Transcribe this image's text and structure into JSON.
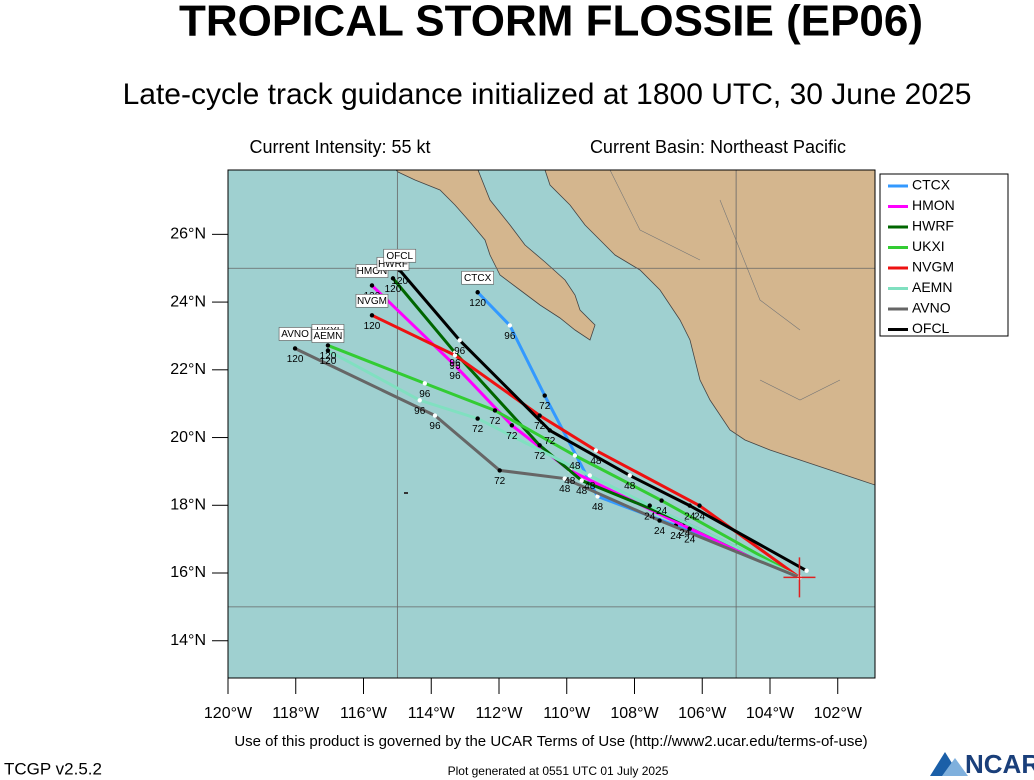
{
  "map": {
    "title": "TROPICAL STORM FLOSSIE (EP06)",
    "subtitle": "Late-cycle track guidance initialized at 1800 UTC, 30 June 2025",
    "intensity": "Current Intensity: 55 kt",
    "basin": "Current Basin: Northeast Pacific",
    "terms": "Use of this product is governed by the UCAR Terms of Use (http://www2.ucar.edu/terms-of-use)",
    "version": "TCGP v2.5.2",
    "generated": "Plot generated at 0551 UTC   01 July 2025",
    "logo": "NCAR",
    "xlim": [
      -120,
      -100.9
    ],
    "ylim": [
      12.9,
      27.9
    ],
    "xticks": [
      {
        "value": -120,
        "label": "120°W"
      },
      {
        "value": -118,
        "label": "118°W"
      },
      {
        "value": -116,
        "label": "116°W"
      },
      {
        "value": -114,
        "label": "114°W"
      },
      {
        "value": -112,
        "label": "112°W"
      },
      {
        "value": -110,
        "label": "110°W"
      },
      {
        "value": -108,
        "label": "108°W"
      },
      {
        "value": -106,
        "label": "106°W"
      },
      {
        "value": -104,
        "label": "104°W"
      },
      {
        "value": -102,
        "label": "102°W"
      }
    ],
    "yticks": [
      {
        "value": 14,
        "label": "14°N"
      },
      {
        "value": 16,
        "label": "16°N"
      },
      {
        "value": 18,
        "label": "18°N"
      },
      {
        "value": 20,
        "label": "20°N"
      },
      {
        "value": 22,
        "label": "22°N"
      },
      {
        "value": 24,
        "label": "24°N"
      },
      {
        "value": 26,
        "label": "26°N"
      }
    ],
    "grid_lon": [
      -115,
      -105
    ],
    "grid_lat": [
      25,
      15
    ],
    "hours": [
      24,
      48,
      72,
      96,
      120
    ],
    "tracks": [
      {
        "name": "CTCX",
        "color": "#3399ff",
        "lon": [
          -103.13,
          -106.78,
          -109.09,
          -110.65,
          -111.68,
          -112.63
        ],
        "lat": [
          15.87,
          17.4,
          18.26,
          21.24,
          23.31,
          24.29
        ]
      },
      {
        "name": "HMON",
        "color": "#ff00ff",
        "lon": [
          -103.13,
          -106.37,
          -109.91,
          -111.62,
          -113.3,
          -115.75
        ],
        "lat": [
          15.87,
          17.31,
          19.03,
          20.36,
          22.13,
          24.49
        ]
      },
      {
        "name": "HWRF",
        "color": "#006600",
        "lon": [
          -103.13,
          -106.52,
          -109.56,
          -110.8,
          -113.3,
          -115.13
        ],
        "lat": [
          15.87,
          17.49,
          18.73,
          19.77,
          22.51,
          24.7
        ]
      },
      {
        "name": "UKXI",
        "color": "#33cc33",
        "lon": [
          -103.13,
          -107.2,
          -109.76,
          -112.12,
          -114.19,
          -117.05
        ],
        "lat": [
          15.87,
          18.14,
          19.47,
          20.8,
          21.6,
          22.72
        ]
      },
      {
        "name": "NVGM",
        "color": "#ee1111",
        "lon": [
          -103.13,
          -106.08,
          -109.14,
          -110.8,
          -113.3,
          -115.75
        ],
        "lat": [
          15.87,
          17.99,
          19.62,
          20.65,
          22.43,
          23.61
        ]
      },
      {
        "name": "AEMN",
        "color": "#80e0c0",
        "lon": [
          -103.13,
          -107.55,
          -109.32,
          -112.63,
          -114.34,
          -117.05
        ],
        "lat": [
          15.87,
          17.99,
          18.88,
          20.56,
          21.1,
          22.57
        ]
      },
      {
        "name": "AVNO",
        "color": "#666666",
        "lon": [
          -103.13,
          -107.26,
          -110.06,
          -111.98,
          -113.89,
          -118.02
        ],
        "lat": [
          15.87,
          17.55,
          18.79,
          19.03,
          20.65,
          22.63
        ]
      },
      {
        "name": "OFCL",
        "color": "#000000",
        "lon": [
          -102.92,
          -106.37,
          -108.14,
          -110.5,
          -113.16,
          -114.93
        ],
        "lat": [
          16.07,
          17.99,
          18.88,
          20.21,
          22.87,
          24.94
        ]
      }
    ]
  }
}
